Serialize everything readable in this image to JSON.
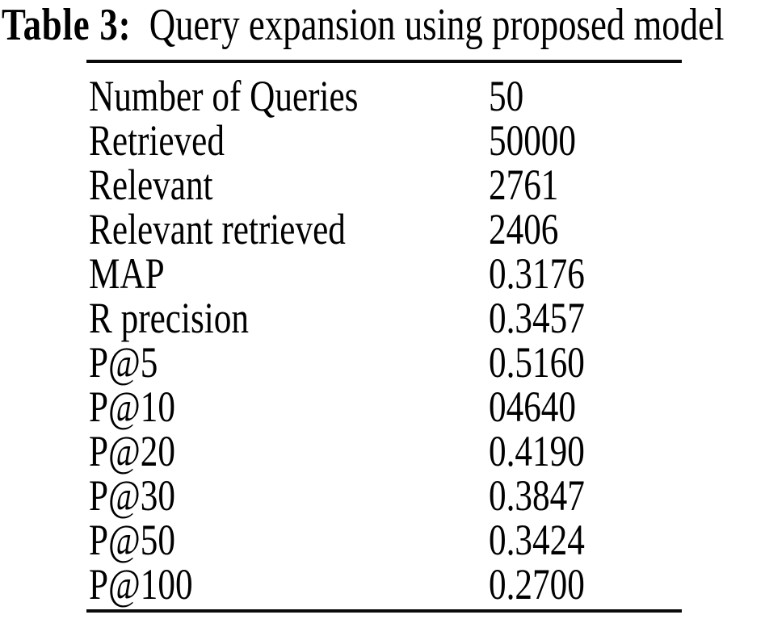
{
  "caption": {
    "label": "Table 3:",
    "text": "Query expansion using proposed model"
  },
  "table": {
    "rows": [
      {
        "label": "Number of Queries",
        "value": "50"
      },
      {
        "label": "Retrieved",
        "value": "50000"
      },
      {
        "label": "Relevant",
        "value": "2761"
      },
      {
        "label": "Relevant retrieved",
        "value": "2406"
      },
      {
        "label": "MAP",
        "value": "0.3176"
      },
      {
        "label": "R precision",
        "value": "0.3457"
      },
      {
        "label": "P@5",
        "value": "0.5160"
      },
      {
        "label": "P@10",
        "value": "04640"
      },
      {
        "label": "P@20",
        "value": "0.4190"
      },
      {
        "label": "P@30",
        "value": "0.3847"
      },
      {
        "label": "P@50",
        "value": "0.3424"
      },
      {
        "label": "P@100",
        "value": "0.2700"
      }
    ]
  },
  "colors": {
    "background": "#ffffff",
    "text": "#000000",
    "rule": "#0a0a0a"
  }
}
